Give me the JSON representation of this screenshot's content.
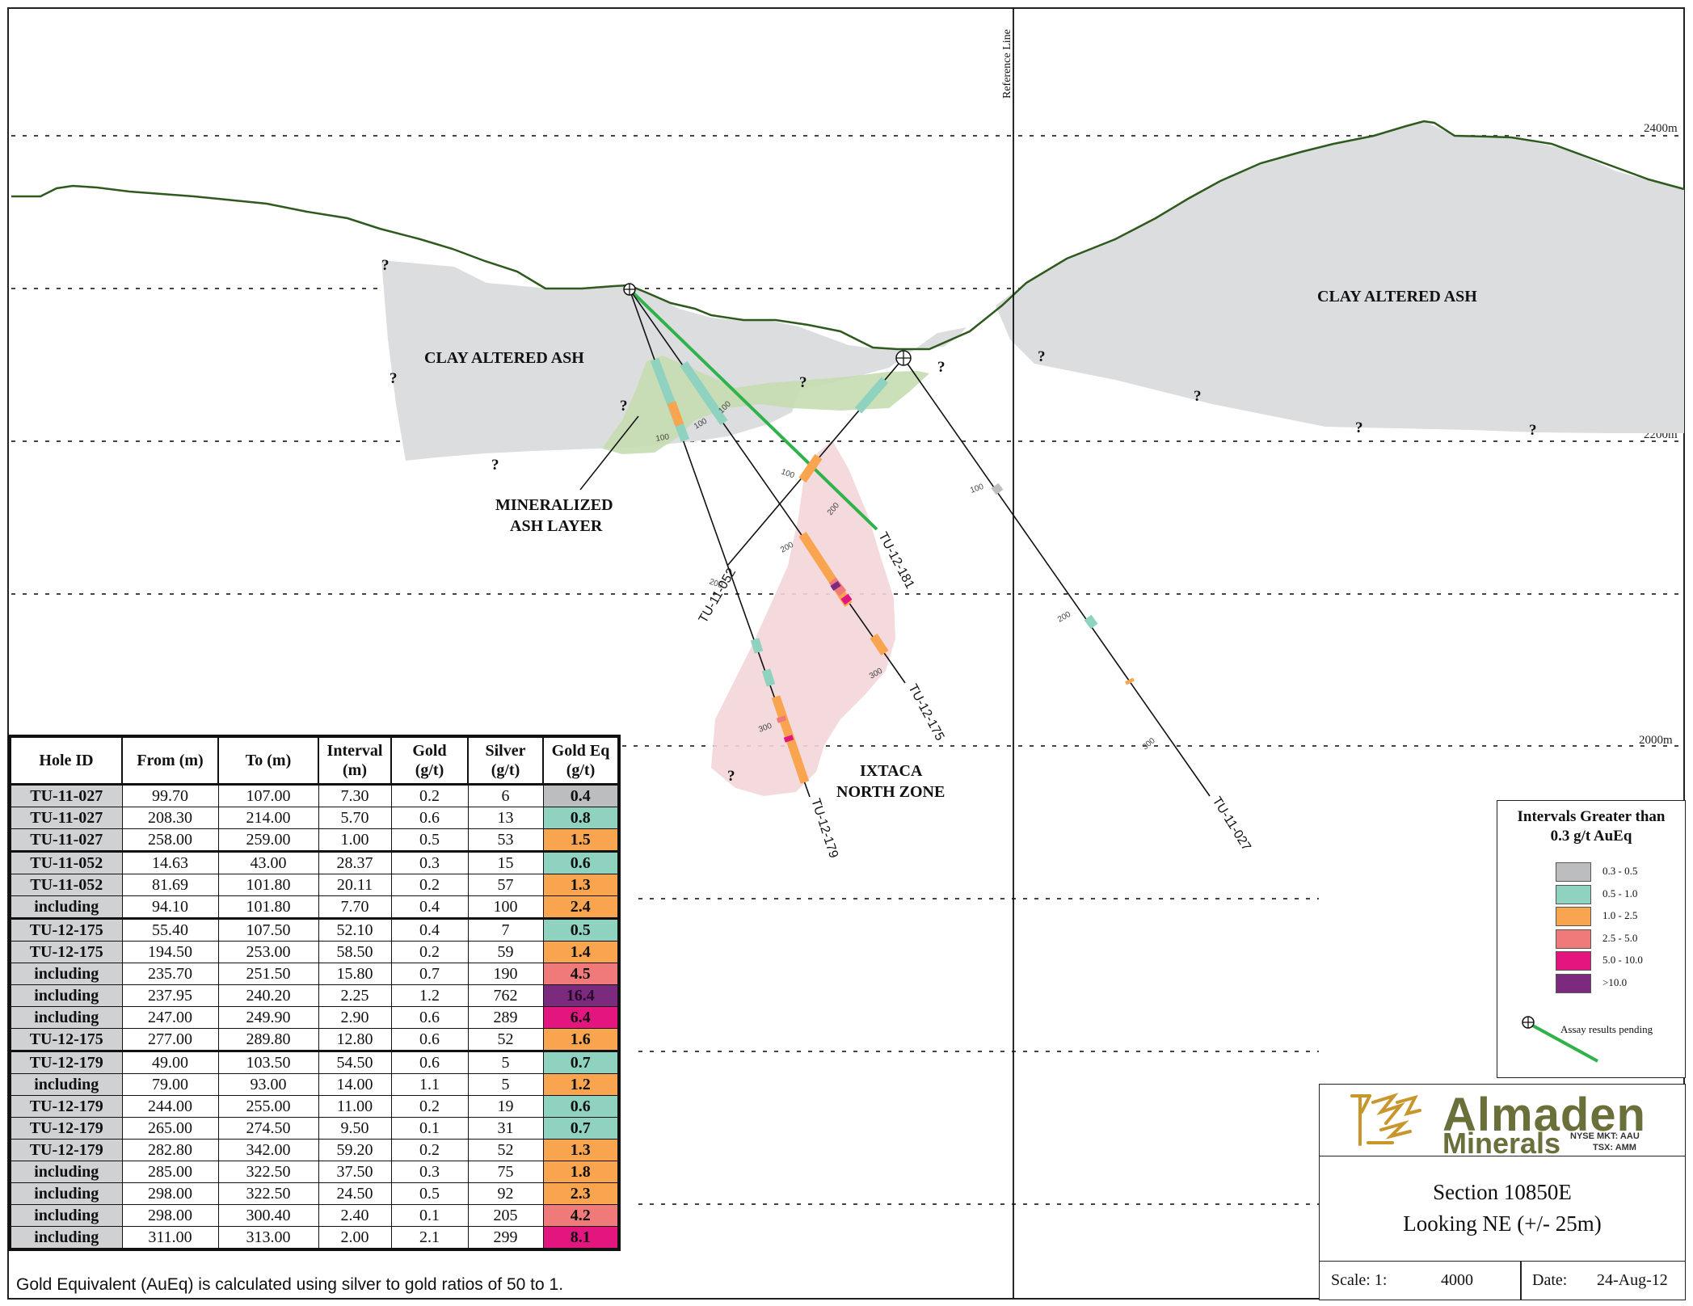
{
  "elevations": {
    "e2400": "2400m",
    "e2200": "2200m",
    "e2000": "2000m"
  },
  "reference_line_label": "Reference Line",
  "zones": {
    "clay_left": "CLAY ALTERED ASH",
    "clay_right": "CLAY ALTERED ASH",
    "mineralized_1": "MINERALIZED",
    "mineralized_2": "ASH LAYER",
    "ixtaca_1": "IXTACA",
    "ixtaca_2": "NORTH ZONE"
  },
  "question_mark": "?",
  "holes": {
    "tu12181": "TU-12-181",
    "tu11052": "TU-11-052",
    "tu12175": "TU-12-175",
    "tu12179": "TU-12-179",
    "tu11027": "TU-11-027"
  },
  "depth_marks": {
    "d100": "100",
    "d200": "200",
    "d300": "300"
  },
  "colors": {
    "terrain": "#2e5a1e",
    "clay_fill": "#dcdddf",
    "ash_fill": "#c5dbb0",
    "ixtaca_fill": "#f3d6d8",
    "pending_hole": "#2fb24a",
    "c03_05": "#bcbdbf",
    "c05_10": "#8fd2bf",
    "c10_25": "#f9a550",
    "c25_50": "#f07a7a",
    "c50_100": "#e3157f",
    "c100": "#7b2a7d"
  },
  "table": {
    "headers": {
      "hole_id": "Hole ID",
      "from": "From (m)",
      "to": "To (m)",
      "interval_1": "Interval",
      "interval_2": "(m)",
      "gold_1": "Gold",
      "gold_2": "(g/t)",
      "silver_1": "Silver",
      "silver_2": "(g/t)",
      "aueq_1": "Gold Eq",
      "aueq_2": "(g/t)"
    },
    "rows": [
      {
        "hole": "TU-11-027",
        "from": "99.70",
        "to": "107.00",
        "interval": "7.30",
        "gold": "0.2",
        "silver": "6",
        "aueq": "0.4",
        "color": "#bcbdbf",
        "group": true
      },
      {
        "hole": "TU-11-027",
        "from": "208.30",
        "to": "214.00",
        "interval": "5.70",
        "gold": "0.6",
        "silver": "13",
        "aueq": "0.8",
        "color": "#8fd2bf",
        "group": false
      },
      {
        "hole": "TU-11-027",
        "from": "258.00",
        "to": "259.00",
        "interval": "1.00",
        "gold": "0.5",
        "silver": "53",
        "aueq": "1.5",
        "color": "#f9a550",
        "group": false
      },
      {
        "hole": "TU-11-052",
        "from": "14.63",
        "to": "43.00",
        "interval": "28.37",
        "gold": "0.3",
        "silver": "15",
        "aueq": "0.6",
        "color": "#8fd2bf",
        "group": true
      },
      {
        "hole": "TU-11-052",
        "from": "81.69",
        "to": "101.80",
        "interval": "20.11",
        "gold": "0.2",
        "silver": "57",
        "aueq": "1.3",
        "color": "#f9a550",
        "group": false
      },
      {
        "hole": "including",
        "from": "94.10",
        "to": "101.80",
        "interval": "7.70",
        "gold": "0.4",
        "silver": "100",
        "aueq": "2.4",
        "color": "#f9a550",
        "group": false
      },
      {
        "hole": "TU-12-175",
        "from": "55.40",
        "to": "107.50",
        "interval": "52.10",
        "gold": "0.4",
        "silver": "7",
        "aueq": "0.5",
        "color": "#8fd2bf",
        "group": true
      },
      {
        "hole": "TU-12-175",
        "from": "194.50",
        "to": "253.00",
        "interval": "58.50",
        "gold": "0.2",
        "silver": "59",
        "aueq": "1.4",
        "color": "#f9a550",
        "group": false
      },
      {
        "hole": "including",
        "from": "235.70",
        "to": "251.50",
        "interval": "15.80",
        "gold": "0.7",
        "silver": "190",
        "aueq": "4.5",
        "color": "#f07a7a",
        "group": false
      },
      {
        "hole": "including",
        "from": "237.95",
        "to": "240.20",
        "interval": "2.25",
        "gold": "1.2",
        "silver": "762",
        "aueq": "16.4",
        "color": "#7b2a7d",
        "group": false
      },
      {
        "hole": "including",
        "from": "247.00",
        "to": "249.90",
        "interval": "2.90",
        "gold": "0.6",
        "silver": "289",
        "aueq": "6.4",
        "color": "#e3157f",
        "group": false
      },
      {
        "hole": "TU-12-175",
        "from": "277.00",
        "to": "289.80",
        "interval": "12.80",
        "gold": "0.6",
        "silver": "52",
        "aueq": "1.6",
        "color": "#f9a550",
        "group": false
      },
      {
        "hole": "TU-12-179",
        "from": "49.00",
        "to": "103.50",
        "interval": "54.50",
        "gold": "0.6",
        "silver": "5",
        "aueq": "0.7",
        "color": "#8fd2bf",
        "group": true
      },
      {
        "hole": "including",
        "from": "79.00",
        "to": "93.00",
        "interval": "14.00",
        "gold": "1.1",
        "silver": "5",
        "aueq": "1.2",
        "color": "#f9a550",
        "group": false
      },
      {
        "hole": "TU-12-179",
        "from": "244.00",
        "to": "255.00",
        "interval": "11.00",
        "gold": "0.2",
        "silver": "19",
        "aueq": "0.6",
        "color": "#8fd2bf",
        "group": false
      },
      {
        "hole": "TU-12-179",
        "from": "265.00",
        "to": "274.50",
        "interval": "9.50",
        "gold": "0.1",
        "silver": "31",
        "aueq": "0.7",
        "color": "#8fd2bf",
        "group": false
      },
      {
        "hole": "TU-12-179",
        "from": "282.80",
        "to": "342.00",
        "interval": "59.20",
        "gold": "0.2",
        "silver": "52",
        "aueq": "1.3",
        "color": "#f9a550",
        "group": false
      },
      {
        "hole": "including",
        "from": "285.00",
        "to": "322.50",
        "interval": "37.50",
        "gold": "0.3",
        "silver": "75",
        "aueq": "1.8",
        "color": "#f9a550",
        "group": false
      },
      {
        "hole": "including",
        "from": "298.00",
        "to": "322.50",
        "interval": "24.50",
        "gold": "0.5",
        "silver": "92",
        "aueq": "2.3",
        "color": "#f9a550",
        "group": false
      },
      {
        "hole": "including",
        "from": "298.00",
        "to": "300.40",
        "interval": "2.40",
        "gold": "0.1",
        "silver": "205",
        "aueq": "4.2",
        "color": "#f07a7a",
        "group": false
      },
      {
        "hole": "including",
        "from": "311.00",
        "to": "313.00",
        "interval": "2.00",
        "gold": "2.1",
        "silver": "299",
        "aueq": "8.1",
        "color": "#e3157f",
        "group": false
      }
    ]
  },
  "footnote": "Gold Equivalent (AuEq) is calculated using silver to gold ratios of 50 to 1.",
  "legend": {
    "title_1": "Intervals Greater than",
    "title_2": "0.3 g/t AuEq",
    "items": [
      {
        "label": "0.3 - 0.5",
        "color": "#bcbdbf"
      },
      {
        "label": "0.5 - 1.0",
        "color": "#8fd2bf"
      },
      {
        "label": "1.0 - 2.5",
        "color": "#f9a550"
      },
      {
        "label": "2.5 - 5.0",
        "color": "#f07a7a"
      },
      {
        "label": "5.0 - 10.0",
        "color": "#e3157f"
      },
      {
        "label": ">10.0",
        "color": "#7b2a7d"
      }
    ],
    "pending_label": "Assay results pending"
  },
  "title_block": {
    "logo_name": "Almaden",
    "logo_sub": "Minerals",
    "logo_exchange_1": "NYSE MKT: AAU",
    "logo_exchange_2": "TSX: AMM",
    "section_name": "Section 10850E",
    "section_view": "Looking NE (+/- 25m)",
    "scale_label": "Scale: 1:",
    "scale_value": "4000",
    "date_label": "Date:",
    "date_value": "24-Aug-12"
  }
}
